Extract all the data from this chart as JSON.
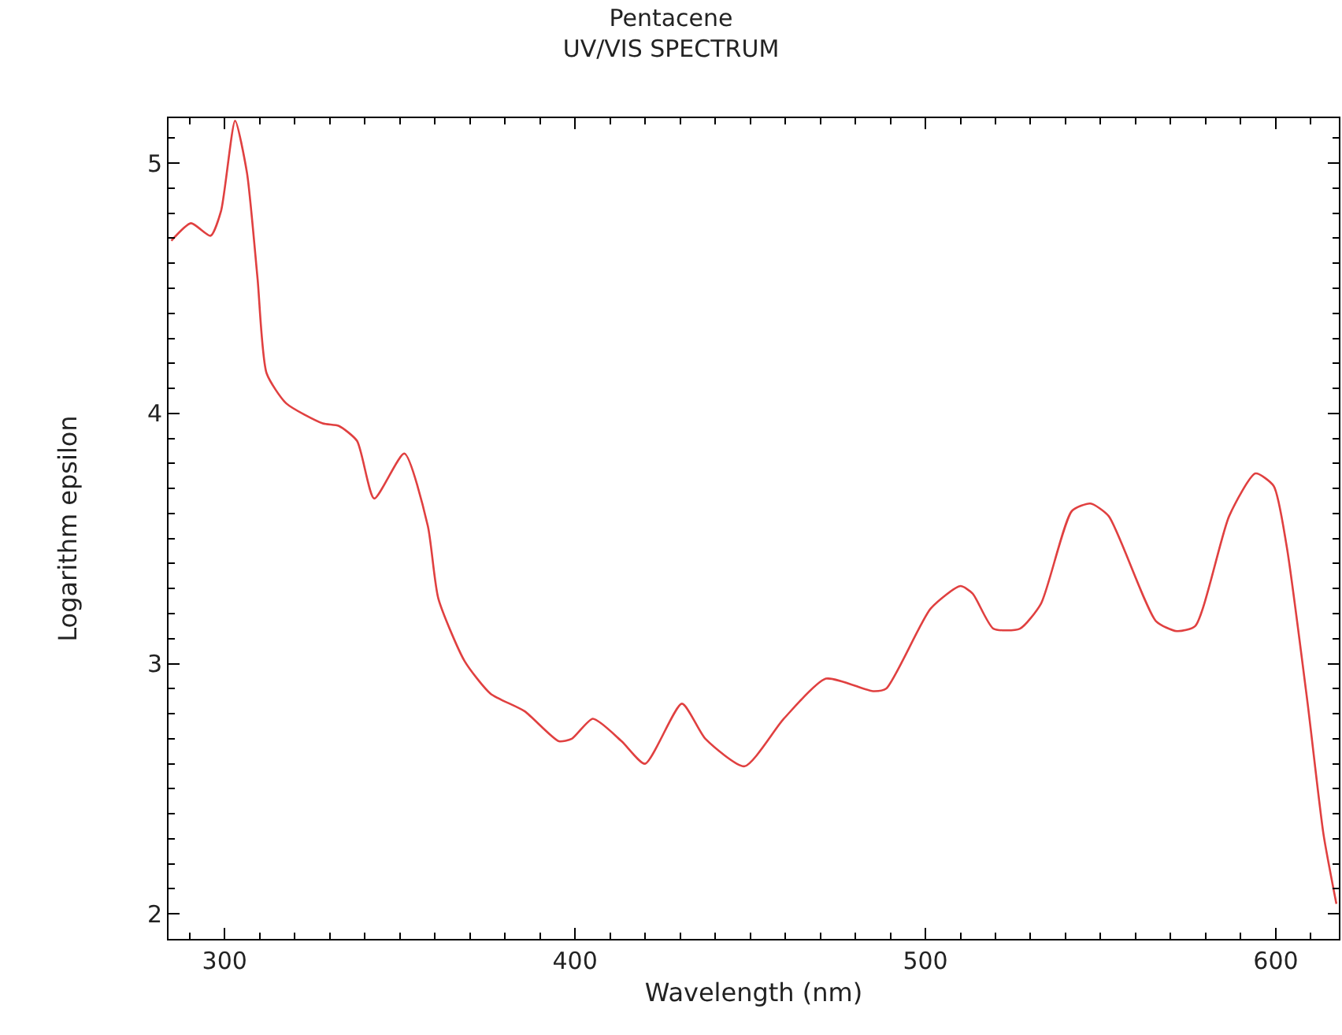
{
  "chart_data": {
    "type": "line",
    "title": "Pentacene",
    "subtitle": "UV/VIS SPECTRUM",
    "xlabel": "Wavelength (nm)",
    "ylabel": "Logarithm epsilon",
    "xlim": [
      284,
      618
    ],
    "xticks": [
      300,
      400,
      500,
      600
    ],
    "ylim": [
      1.9,
      5.18
    ],
    "yticks": [
      2,
      3,
      4,
      5
    ],
    "marker": "none",
    "line_style": "solid",
    "series": [
      {
        "color": "#e04040",
        "x": [
          284.8,
          290.4,
          296,
          299,
          303,
          306.4,
          309.4,
          312,
          317.6,
          328,
          332.6,
          337.8,
          342.7,
          351.3,
          358,
          361,
          368.5,
          375.9,
          385.6,
          395.4,
          399.1,
          405.1,
          413.3,
          420,
          430.5,
          437.2,
          448.4,
          459.6,
          471.6,
          485,
          488.8,
          501.5,
          510,
          513.5,
          519.4,
          527,
          533,
          541.8,
          547.1,
          552.3,
          565.8,
          571.7,
          577,
          586.7,
          594.2,
          599.4,
          603.1,
          609.1,
          613.6,
          617.3
        ],
        "values": [
          4.69,
          4.76,
          4.71,
          4.81,
          5.17,
          4.96,
          4.54,
          4.16,
          4.04,
          3.96,
          3.95,
          3.89,
          3.66,
          3.84,
          3.55,
          3.26,
          3.01,
          2.88,
          2.81,
          2.69,
          2.7,
          2.78,
          2.69,
          2.6,
          2.84,
          2.7,
          2.59,
          2.78,
          2.94,
          2.89,
          2.9,
          3.22,
          3.31,
          3.28,
          3.14,
          3.14,
          3.24,
          3.61,
          3.64,
          3.59,
          3.17,
          3.13,
          3.15,
          3.59,
          3.76,
          3.71,
          3.47,
          2.84,
          2.32,
          2.04
        ]
      }
    ]
  }
}
